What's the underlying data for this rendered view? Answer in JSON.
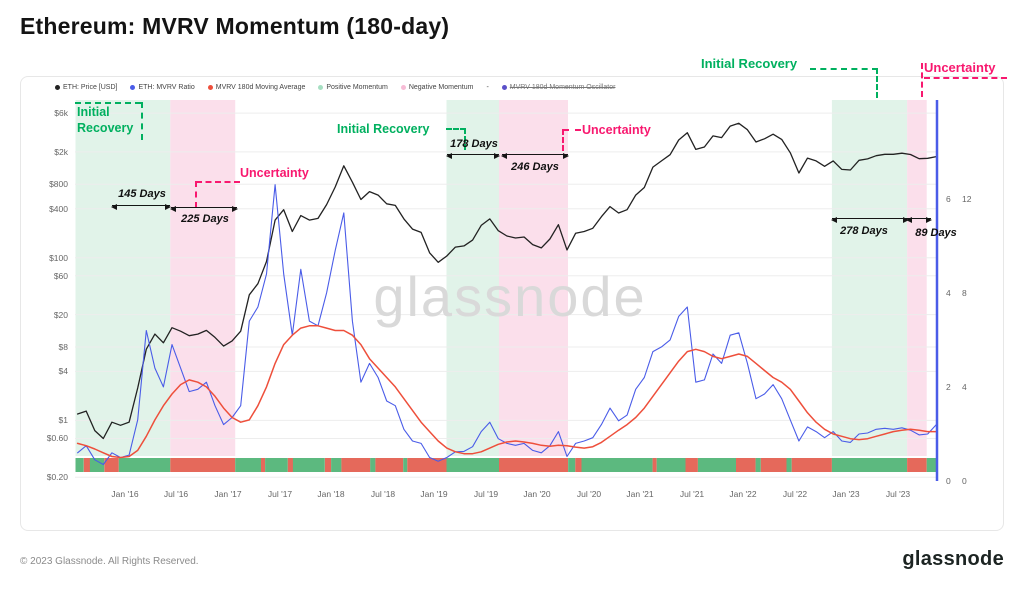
{
  "page": {
    "title": "Ethereum: MVRV Momentum (180-day)",
    "watermark": "glassnode",
    "footer": {
      "copyright": "© 2023 Glassnode. All Rights Reserved.",
      "logo": "glassnode"
    }
  },
  "colors": {
    "recovery_green": "#00b05f",
    "uncertainty_pink": "#f8186f",
    "price_black": "#222222",
    "mvrv_blue": "#4a5ce8",
    "ma_red": "#ee4f3b",
    "positive_band": "#e1f3e9",
    "negative_band": "#fbdfeb",
    "strip_green": "#5cb97f",
    "strip_red": "#e5695b",
    "oscillator_purple": "#5b50c9",
    "watermark_gray": "#d9d9d9",
    "grid_gray": "#ededed"
  },
  "legend": [
    {
      "label": "ETH: Price [USD]",
      "color": "#222222",
      "strikethrough": false
    },
    {
      "label": "ETH: MVRV Ratio",
      "color": "#4a5ce8",
      "strikethrough": false
    },
    {
      "label": "MVRV 180d Moving Average",
      "color": "#ee4f3b",
      "strikethrough": false
    },
    {
      "label": "Positive Momentum",
      "color": "#a6dfc2",
      "strikethrough": false
    },
    {
      "label": "Negative Momentum",
      "color": "#f7bcd6",
      "strikethrough": false
    },
    {
      "label": "-",
      "color": null,
      "strikethrough": false
    },
    {
      "label": "MVRV 180d Momentum Oscillator",
      "color": "#5b50c9",
      "strikethrough": true
    }
  ],
  "annotations": {
    "recovery1": {
      "label": "Initial Recovery",
      "days": "145 Days"
    },
    "uncertainty1": {
      "label": "Uncertainty",
      "days": "225 Days"
    },
    "recovery2": {
      "label": "Initial Recovery",
      "days": "178 Days"
    },
    "uncertainty2": {
      "label": "Uncertainty",
      "days": "246 Days"
    },
    "recovery3": {
      "label": "Initial Recovery",
      "days": "278 Days"
    },
    "uncertainty3": {
      "label": "Uncertainty",
      "days": "89 Days"
    }
  },
  "chart_data": {
    "type": "line",
    "title": "Ethereum: MVRV Momentum (180-day)",
    "x_domain": [
      2015.515,
      2023.89
    ],
    "x_ticks": [
      {
        "t": 2016.0,
        "label": "Jan '16"
      },
      {
        "t": 2016.5,
        "label": "Jul '16"
      },
      {
        "t": 2017.0,
        "label": "Jan '17"
      },
      {
        "t": 2017.5,
        "label": "Jul '17"
      },
      {
        "t": 2018.0,
        "label": "Jan '18"
      },
      {
        "t": 2018.5,
        "label": "Jul '18"
      },
      {
        "t": 2019.0,
        "label": "Jan '19"
      },
      {
        "t": 2019.5,
        "label": "Jul '19"
      },
      {
        "t": 2020.0,
        "label": "Jan '20"
      },
      {
        "t": 2020.5,
        "label": "Jul '20"
      },
      {
        "t": 2021.0,
        "label": "Jan '21"
      },
      {
        "t": 2021.5,
        "label": "Jul '21"
      },
      {
        "t": 2022.0,
        "label": "Jan '22"
      },
      {
        "t": 2022.5,
        "label": "Jul '22"
      },
      {
        "t": 2023.0,
        "label": "Jan '23"
      },
      {
        "t": 2023.5,
        "label": "Jul '23"
      }
    ],
    "left_axis": {
      "scale": "log",
      "range": [
        0.17,
        8700
      ],
      "ticks": [
        {
          "v": 6000,
          "label": "$6k"
        },
        {
          "v": 2000,
          "label": "$2k"
        },
        {
          "v": 800,
          "label": "$800"
        },
        {
          "v": 400,
          "label": "$400"
        },
        {
          "v": 100,
          "label": "$100"
        },
        {
          "v": 60,
          "label": "$60"
        },
        {
          "v": 20,
          "label": "$20"
        },
        {
          "v": 8,
          "label": "$8"
        },
        {
          "v": 4,
          "label": "$4"
        },
        {
          "v": 1,
          "label": "$1"
        },
        {
          "v": 0.6,
          "label": "$0.60"
        },
        {
          "v": 0.2,
          "label": "$0.20"
        }
      ]
    },
    "right_axis_mvrv": {
      "scale": "linear",
      "range": [
        0,
        8.1
      ],
      "ticks": [
        0,
        2,
        4,
        6
      ]
    },
    "right_axis_oscillator": {
      "scale": "linear",
      "range": [
        0,
        16.2
      ],
      "ticks": [
        0,
        4,
        8,
        12
      ]
    },
    "series": [
      {
        "name": "ETH: Price [USD]",
        "axis": "price",
        "color_key": "price_black",
        "width": 1.3,
        "x_start": 2015.54,
        "x_step": 0.083333,
        "values": [
          1.2,
          1.3,
          0.75,
          0.6,
          0.95,
          0.87,
          0.95,
          2.5,
          7.5,
          11.5,
          9.0,
          13.8,
          12.5,
          11.0,
          11.5,
          12.8,
          10.5,
          8.2,
          9.5,
          12.5,
          35,
          48,
          90,
          290,
          390,
          210,
          330,
          290,
          305,
          450,
          740,
          1350,
          850,
          520,
          650,
          590,
          460,
          440,
          300,
          225,
          205,
          115,
          88,
          105,
          135,
          140,
          165,
          250,
          300,
          215,
          185,
          175,
          180,
          145,
          132,
          170,
          255,
          125,
          200,
          210,
          230,
          320,
          425,
          355,
          390,
          590,
          730,
          1300,
          1550,
          1850,
          2800,
          3450,
          2150,
          2300,
          3150,
          3000,
          4150,
          4500,
          3750,
          2650,
          2900,
          3300,
          2850,
          1950,
          1100,
          1680,
          1550,
          1330,
          1550,
          1220,
          1200,
          1580,
          1640,
          1800,
          1870,
          1870,
          1930,
          1860,
          1650,
          1670,
          1750
        ]
      },
      {
        "name": "ETH: MVRV Ratio",
        "axis": "mvrv",
        "color_key": "mvrv_blue",
        "width": 1.1,
        "x_start": 2015.54,
        "x_step": 0.083333,
        "values": [
          0.6,
          0.75,
          0.45,
          0.35,
          0.6,
          0.5,
          0.55,
          1.3,
          3.2,
          2.4,
          2.0,
          2.9,
          2.4,
          1.9,
          1.95,
          2.1,
          1.6,
          1.2,
          1.35,
          1.6,
          3.4,
          3.7,
          4.4,
          6.3,
          4.4,
          3.1,
          4.5,
          3.4,
          3.3,
          4.0,
          4.9,
          5.7,
          3.4,
          2.1,
          2.5,
          2.2,
          1.7,
          1.6,
          1.1,
          0.85,
          0.8,
          0.5,
          0.42,
          0.5,
          0.62,
          0.63,
          0.73,
          1.05,
          1.25,
          0.9,
          0.8,
          0.76,
          0.8,
          0.65,
          0.6,
          0.75,
          1.05,
          0.52,
          0.8,
          0.85,
          0.92,
          1.2,
          1.55,
          1.28,
          1.4,
          1.95,
          2.2,
          2.75,
          2.85,
          3.0,
          3.5,
          3.7,
          2.1,
          2.15,
          2.7,
          2.5,
          3.1,
          3.15,
          2.5,
          1.75,
          1.85,
          2.05,
          1.75,
          1.3,
          0.85,
          1.15,
          1.05,
          0.92,
          1.05,
          0.85,
          0.82,
          1.0,
          1.02,
          1.1,
          1.12,
          1.1,
          1.13,
          1.08,
          0.98,
          1.0,
          1.2
        ]
      },
      {
        "name": "MVRV 180d Moving Average",
        "axis": "mvrv",
        "color_key": "ma_red",
        "width": 1.5,
        "x_start": 2015.54,
        "x_step": 0.083333,
        "values": [
          0.8,
          0.75,
          0.68,
          0.6,
          0.52,
          0.5,
          0.52,
          0.65,
          0.95,
          1.3,
          1.6,
          1.85,
          2.05,
          2.15,
          2.1,
          2.0,
          1.8,
          1.55,
          1.35,
          1.25,
          1.3,
          1.6,
          2.0,
          2.5,
          2.9,
          3.1,
          3.25,
          3.3,
          3.3,
          3.25,
          3.2,
          3.2,
          3.1,
          2.9,
          2.6,
          2.4,
          2.2,
          2.0,
          1.75,
          1.5,
          1.25,
          1.05,
          0.85,
          0.7,
          0.62,
          0.58,
          0.58,
          0.62,
          0.7,
          0.78,
          0.83,
          0.85,
          0.83,
          0.8,
          0.76,
          0.74,
          0.76,
          0.75,
          0.72,
          0.7,
          0.73,
          0.82,
          0.95,
          1.08,
          1.2,
          1.35,
          1.55,
          1.8,
          2.05,
          2.3,
          2.55,
          2.75,
          2.8,
          2.75,
          2.65,
          2.6,
          2.65,
          2.7,
          2.65,
          2.5,
          2.35,
          2.2,
          2.1,
          1.95,
          1.7,
          1.45,
          1.25,
          1.1,
          1.0,
          0.95,
          0.9,
          0.88,
          0.9,
          0.95,
          1.0,
          1.05,
          1.08,
          1.1,
          1.08,
          1.05,
          1.05
        ]
      }
    ],
    "bands": [
      {
        "phase": "Initial Recovery",
        "kind": "positive",
        "start": 2015.52,
        "end": 2016.44,
        "duration": "145 Days"
      },
      {
        "phase": "Uncertainty",
        "kind": "negative",
        "start": 2016.44,
        "end": 2017.07,
        "duration": "225 Days"
      },
      {
        "phase": "Initial Recovery",
        "kind": "positive",
        "start": 2019.12,
        "end": 2019.63,
        "duration": "178 Days"
      },
      {
        "phase": "Uncertainty",
        "kind": "negative",
        "start": 2019.63,
        "end": 2020.3,
        "duration": "246 Days"
      },
      {
        "phase": "Initial Recovery",
        "kind": "positive",
        "start": 2022.86,
        "end": 2023.59,
        "duration": "278 Days"
      },
      {
        "phase": "Uncertainty",
        "kind": "negative",
        "start": 2023.59,
        "end": 2023.78,
        "duration": "89 Days"
      }
    ],
    "momentum_strip": [
      [
        2015.52,
        2015.6,
        "g"
      ],
      [
        2015.6,
        2015.66,
        "r"
      ],
      [
        2015.66,
        2015.8,
        "g"
      ],
      [
        2015.8,
        2015.94,
        "r"
      ],
      [
        2015.94,
        2016.44,
        "g"
      ],
      [
        2016.44,
        2017.07,
        "r"
      ],
      [
        2017.07,
        2017.32,
        "g"
      ],
      [
        2017.32,
        2017.36,
        "r"
      ],
      [
        2017.36,
        2017.58,
        "g"
      ],
      [
        2017.58,
        2017.63,
        "r"
      ],
      [
        2017.63,
        2017.94,
        "g"
      ],
      [
        2017.94,
        2018.0,
        "r"
      ],
      [
        2018.0,
        2018.1,
        "g"
      ],
      [
        2018.1,
        2018.38,
        "r"
      ],
      [
        2018.38,
        2018.43,
        "g"
      ],
      [
        2018.43,
        2018.7,
        "r"
      ],
      [
        2018.7,
        2018.74,
        "g"
      ],
      [
        2018.74,
        2019.12,
        "r"
      ],
      [
        2019.12,
        2019.63,
        "g"
      ],
      [
        2019.63,
        2020.3,
        "r"
      ],
      [
        2020.3,
        2020.37,
        "g"
      ],
      [
        2020.37,
        2020.43,
        "r"
      ],
      [
        2020.43,
        2021.12,
        "g"
      ],
      [
        2021.12,
        2021.16,
        "r"
      ],
      [
        2021.16,
        2021.44,
        "g"
      ],
      [
        2021.44,
        2021.56,
        "r"
      ],
      [
        2021.56,
        2021.93,
        "g"
      ],
      [
        2021.93,
        2022.12,
        "r"
      ],
      [
        2022.12,
        2022.17,
        "g"
      ],
      [
        2022.17,
        2022.42,
        "r"
      ],
      [
        2022.42,
        2022.47,
        "g"
      ],
      [
        2022.47,
        2022.86,
        "r"
      ],
      [
        2022.86,
        2023.59,
        "g"
      ],
      [
        2023.59,
        2023.78,
        "r"
      ],
      [
        2023.78,
        2023.89,
        "g"
      ]
    ],
    "now_line": {
      "t": 2023.88,
      "color_key": "mvrv_blue"
    }
  }
}
